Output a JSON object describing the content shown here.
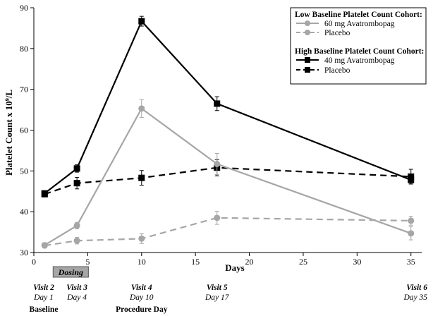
{
  "chart_data": {
    "type": "line",
    "xlabel": "Days",
    "ylabel_main": "Platelet Count  x 10",
    "ylabel_sup": "9",
    "ylabel_tail": "/L",
    "xlim": [
      0,
      36
    ],
    "ylim": [
      30,
      90
    ],
    "xticks": [
      0,
      5,
      10,
      15,
      20,
      25,
      30,
      35
    ],
    "yticks": [
      30,
      40,
      50,
      60,
      70,
      80,
      90
    ],
    "x": [
      1,
      4,
      10,
      17,
      35
    ],
    "legend": {
      "position": "top-right",
      "group1_title": "Low Baseline Platelet Count Cohort:",
      "group2_title": "High Baseline Platelet Count Cohort:"
    },
    "series": [
      {
        "name": "60 mg Avatrombopag",
        "cohort": "low",
        "color": "#a6a6a6",
        "marker": "circle",
        "dash": "solid",
        "values": [
          31.8,
          36.6,
          65.3,
          51.7,
          34.7
        ],
        "errors": [
          0.6,
          0.8,
          2.2,
          2.6,
          1.6
        ]
      },
      {
        "name": "Placebo",
        "cohort": "low",
        "color": "#a6a6a6",
        "marker": "circle",
        "dash": "dashed",
        "values": [
          31.7,
          32.9,
          33.4,
          38.5,
          37.8
        ],
        "errors": [
          0.4,
          0.8,
          1.2,
          1.6,
          1.1
        ]
      },
      {
        "name": "40 mg Avatrombopag",
        "cohort": "high",
        "color": "#000000",
        "marker": "square",
        "dash": "solid",
        "values": [
          44.5,
          50.6,
          86.7,
          66.5,
          47.8
        ],
        "errors": [
          0.6,
          0.9,
          1.2,
          1.7,
          1.0
        ]
      },
      {
        "name": "Placebo",
        "cohort": "high",
        "color": "#000000",
        "marker": "square",
        "dash": "dashed",
        "values": [
          44.3,
          47.0,
          48.3,
          50.8,
          48.6
        ],
        "errors": [
          0.6,
          1.4,
          1.8,
          2.0,
          1.8
        ]
      }
    ],
    "dosing": {
      "label": "Dosing",
      "x_start": 1,
      "x_end": 5
    },
    "visits": [
      {
        "name": "Visit 2",
        "day_label": "Day 1",
        "x": 1,
        "event": "Baseline"
      },
      {
        "name": "Visit 3",
        "day_label": "Day 4",
        "x": 4,
        "event": ""
      },
      {
        "name": "Visit 4",
        "day_label": "Day 10",
        "x": 10,
        "event": "Procedure Day"
      },
      {
        "name": "Visit 5",
        "day_label": "Day 17",
        "x": 17,
        "event": ""
      },
      {
        "name": "Visit 6",
        "day_label": "Day 35",
        "x": 35,
        "event": ""
      }
    ]
  }
}
